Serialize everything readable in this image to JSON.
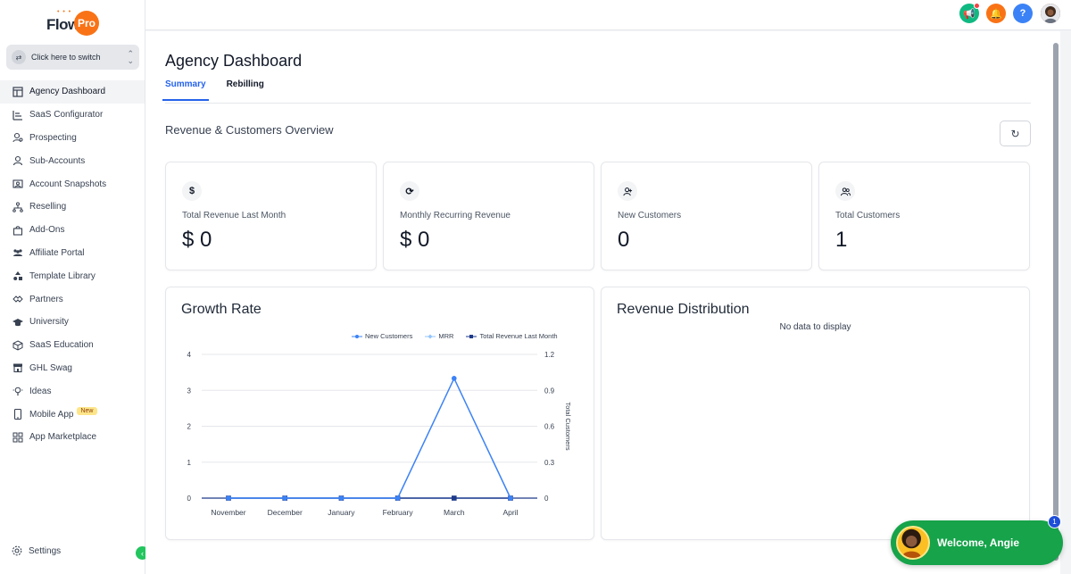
{
  "brand": {
    "logo_text": "Flow",
    "logo_mark": "Pro"
  },
  "switcher": {
    "label": "Click here to switch"
  },
  "sidebar": {
    "items": [
      {
        "label": "Agency Dashboard",
        "icon": "dashboard-icon",
        "active": true
      },
      {
        "label": "SaaS Configurator",
        "icon": "bar-chart-icon"
      },
      {
        "label": "Prospecting",
        "icon": "users-search-icon"
      },
      {
        "label": "Sub-Accounts",
        "icon": "user-icon"
      },
      {
        "label": "Account Snapshots",
        "icon": "snapshot-icon"
      },
      {
        "label": "Reselling",
        "icon": "hierarchy-icon"
      },
      {
        "label": "Add-Ons",
        "icon": "bag-icon"
      },
      {
        "label": "Affiliate Portal",
        "icon": "group-icon"
      },
      {
        "label": "Template Library",
        "icon": "shapes-icon"
      },
      {
        "label": "Partners",
        "icon": "handshake-icon"
      },
      {
        "label": "University",
        "icon": "graduation-cap-icon"
      },
      {
        "label": "SaaS Education",
        "icon": "cube-icon"
      },
      {
        "label": "GHL Swag",
        "icon": "store-icon"
      },
      {
        "label": "Ideas",
        "icon": "lightbulb-icon"
      },
      {
        "label": "Mobile App",
        "icon": "mobile-icon",
        "badge": "New"
      },
      {
        "label": "App Marketplace",
        "icon": "grid-icon"
      }
    ],
    "settings_label": "Settings"
  },
  "page": {
    "title": "Agency Dashboard",
    "tabs": [
      {
        "label": "Summary",
        "active": true
      },
      {
        "label": "Rebilling"
      }
    ],
    "section_title": "Revenue & Customers Overview"
  },
  "stats": [
    {
      "label": "Total Revenue Last Month",
      "value": "$ 0",
      "icon": "dollar-icon",
      "glyph": "$"
    },
    {
      "label": "Monthly Recurring Revenue",
      "value": "$ 0",
      "icon": "recurring-icon",
      "glyph": "⟳"
    },
    {
      "label": "New Customers",
      "value": "0",
      "icon": "user-plus-icon",
      "glyph": "+"
    },
    {
      "label": "Total Customers",
      "value": "1",
      "icon": "users-icon",
      "glyph": "👥"
    }
  ],
  "growth": {
    "title": "Growth Rate",
    "legend": [
      "New Customers",
      "MRR",
      "Total Revenue Last Month"
    ]
  },
  "distribution": {
    "title": "Revenue Distribution",
    "empty_text": "No data to display"
  },
  "chart_data": {
    "type": "line",
    "title": "Growth Rate",
    "categories": [
      "November",
      "December",
      "January",
      "February",
      "March",
      "April"
    ],
    "series": [
      {
        "name": "New Customers",
        "axis": "left",
        "values": [
          0,
          0,
          0,
          0,
          0,
          0
        ],
        "color": "#1e3a8a"
      },
      {
        "name": "MRR",
        "axis": "left",
        "values": [
          0,
          0,
          0,
          0,
          0,
          0
        ],
        "color": "#93c5fd"
      },
      {
        "name": "Total Revenue Last Month",
        "axis": "left",
        "values": [
          0,
          0,
          0,
          0,
          0,
          0
        ],
        "color": "#1e3a8a"
      },
      {
        "name": "Total Customers",
        "axis": "right",
        "values": [
          0,
          0,
          0,
          0,
          1,
          0
        ],
        "color": "#3b82f6"
      }
    ],
    "ylim_left": [
      0,
      4
    ],
    "yticks_left": [
      0,
      1,
      2,
      3,
      4
    ],
    "ylim_right": [
      0,
      1.2
    ],
    "yticks_right": [
      0,
      0.3,
      0.6,
      0.9,
      1.2
    ],
    "ylabel_right": "Total Customers",
    "grid": true,
    "legend_position": "top-right"
  },
  "welcome": {
    "text": "Welcome, Angie",
    "count": "1"
  },
  "colors": {
    "accent": "#2563eb",
    "success": "#16a34a",
    "warning": "#f97316"
  }
}
